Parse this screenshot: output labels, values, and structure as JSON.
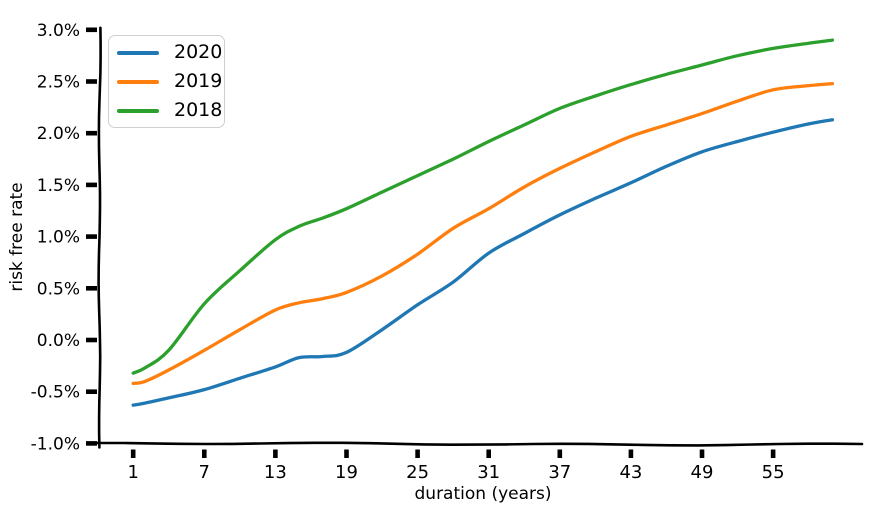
{
  "chart_data": {
    "type": "line",
    "style": "xkcd-handdrawn",
    "title": "",
    "xlabel": "duration (years)",
    "ylabel": "risk free rate",
    "xlim": [
      -1.8,
      62.5
    ],
    "ylim": [
      -1.0,
      3.0
    ],
    "grid": false,
    "legend_position": "upper left",
    "x_ticks": [
      1,
      7,
      13,
      19,
      25,
      31,
      37,
      43,
      49,
      55
    ],
    "x_tick_labels": [
      "1",
      "7",
      "13",
      "19",
      "25",
      "31",
      "37",
      "43",
      "49",
      "55"
    ],
    "y_tick_values": [
      3.0,
      2.5,
      2.0,
      1.5,
      1.0,
      0.5,
      0.0,
      -0.5,
      -1.0
    ],
    "y_tick_labels": [
      "3.0%",
      "2.5%",
      "2.0%",
      "1.5%",
      "1.0%",
      "0.5%",
      "0.0%",
      "-0.5%",
      "-1.0%"
    ],
    "x": [
      1,
      2,
      4,
      7,
      10,
      13,
      15,
      17,
      19,
      22,
      25,
      28,
      31,
      34,
      37,
      40,
      43,
      46,
      49,
      52,
      55,
      58,
      60
    ],
    "series": [
      {
        "name": "2020",
        "color": "#1f77b4",
        "values": [
          -0.63,
          -0.61,
          -0.56,
          -0.48,
          -0.37,
          -0.26,
          -0.17,
          -0.16,
          -0.12,
          0.1,
          0.34,
          0.56,
          0.84,
          1.03,
          1.21,
          1.37,
          1.52,
          1.68,
          1.82,
          1.92,
          2.01,
          2.09,
          2.13
        ]
      },
      {
        "name": "2019",
        "color": "#ff7f0e",
        "values": [
          -0.42,
          -0.4,
          -0.29,
          -0.1,
          0.1,
          0.29,
          0.36,
          0.4,
          0.46,
          0.62,
          0.83,
          1.08,
          1.27,
          1.48,
          1.66,
          1.82,
          1.97,
          2.08,
          2.19,
          2.31,
          2.42,
          2.46,
          2.48
        ]
      },
      {
        "name": "2018",
        "color": "#2ca02c",
        "values": [
          -0.32,
          -0.27,
          -0.1,
          0.35,
          0.67,
          0.97,
          1.1,
          1.18,
          1.27,
          1.43,
          1.59,
          1.75,
          1.92,
          2.08,
          2.24,
          2.36,
          2.47,
          2.57,
          2.66,
          2.75,
          2.82,
          2.87,
          2.9
        ]
      }
    ]
  }
}
